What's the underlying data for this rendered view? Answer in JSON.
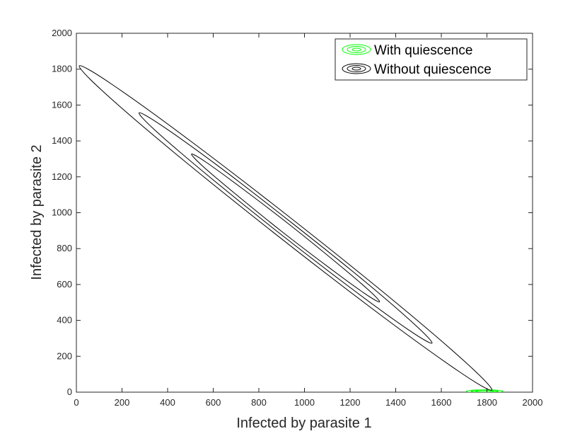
{
  "chart_data": {
    "type": "contour",
    "xlabel": "Infected by parasite 1",
    "ylabel": "Infected by parasite 2",
    "xlim": [
      0,
      2000
    ],
    "ylim": [
      0,
      2000
    ],
    "xticks": [
      0,
      200,
      400,
      600,
      800,
      1000,
      1200,
      1400,
      1600,
      1800,
      2000
    ],
    "yticks": [
      0,
      200,
      400,
      600,
      800,
      1000,
      1200,
      1400,
      1600,
      1800,
      2000
    ],
    "legend": "upper right",
    "series": [
      {
        "name": "With quiescence",
        "color": "#00ff00",
        "contours": [
          {
            "x": [
              1870,
              1847,
              1790,
              1733,
              1710,
              1733,
              1790,
              1847
            ],
            "y": [
              5,
              11,
              13,
              11,
              5,
              -1,
              -3,
              -1
            ]
          },
          {
            "x": [
              1850,
              1832,
              1790,
              1748,
              1730,
              1748,
              1790,
              1832
            ],
            "y": [
              5,
              9,
              11,
              9,
              5,
              1,
              -1,
              1
            ]
          },
          {
            "x": [
              1830,
              1818,
              1790,
              1762,
              1750,
              1762,
              1790,
              1818
            ],
            "y": [
              5,
              8,
              9,
              8,
              5,
              2,
              1,
              2
            ]
          }
        ]
      },
      {
        "name": "Without quiescence",
        "color": "#000000",
        "contours": [
          {
            "x": [
              1821,
              1719,
              1403,
              956,
              499,
              154,
              13,
              115,
              431,
              878,
              1335,
              1680
            ],
            "y": [
              11,
              152,
              497,
              954,
              1401,
              1717,
              1819,
              1678,
              1333,
              876,
              429,
              113
            ]
          },
          {
            "x": [
              1559,
              1487,
              1263,
              945,
              621,
              375,
              275,
              347,
              572,
              889,
              1214,
              1459
            ],
            "y": [
              273,
              373,
              619,
              943,
              1261,
              1485,
              1557,
              1457,
              1212,
              887,
              570,
              345
            ]
          },
          {
            "x": [
              1329,
              1283,
              1138,
              935,
              726,
              569,
              505,
              551,
              696,
              899,
              1108,
              1265
            ],
            "y": [
              503,
              567,
              724,
              933,
              1136,
              1281,
              1327,
              1263,
              1106,
              897,
              694,
              549
            ]
          }
        ]
      }
    ]
  }
}
